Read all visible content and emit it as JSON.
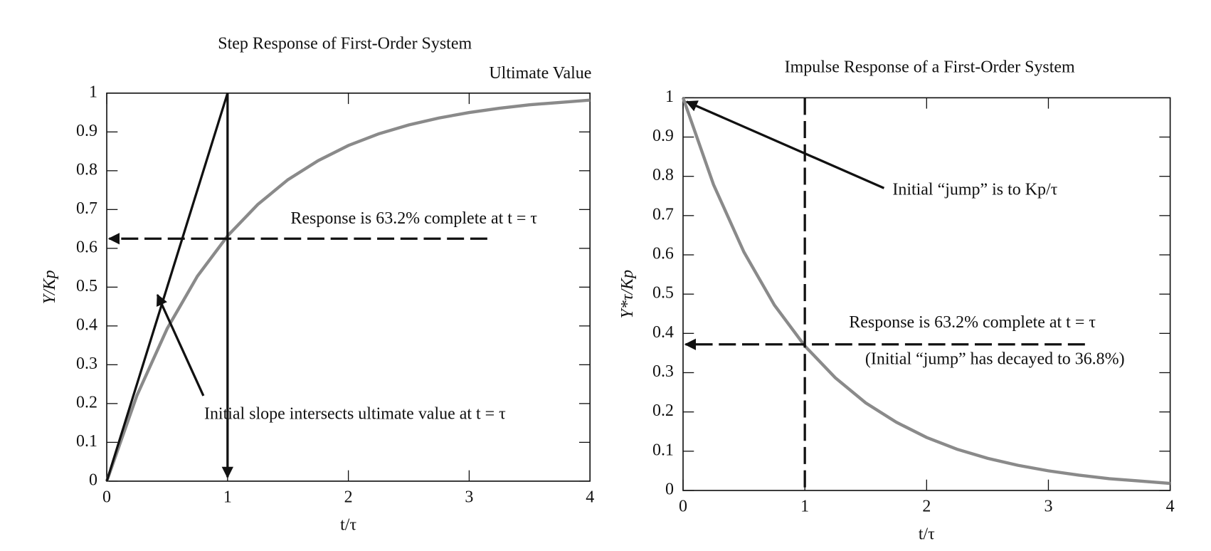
{
  "chart_data": [
    {
      "type": "line",
      "title": "Step Response of First-Order System",
      "xlabel": "t/τ",
      "ylabel": "Y/Kp",
      "x": [
        0,
        0.25,
        0.5,
        0.75,
        1,
        1.25,
        1.5,
        1.75,
        2,
        2.25,
        2.5,
        2.75,
        3,
        3.25,
        3.5,
        3.75,
        4
      ],
      "values": [
        0,
        0.221,
        0.393,
        0.528,
        0.632,
        0.713,
        0.777,
        0.826,
        0.865,
        0.895,
        0.918,
        0.936,
        0.95,
        0.961,
        0.97,
        0.976,
        0.982
      ],
      "color": "#8a8a8a",
      "xlim": [
        0,
        4
      ],
      "ylim": [
        0,
        1
      ],
      "xticks": [
        0,
        1,
        2,
        3,
        4
      ],
      "yticks": [
        0,
        0.1,
        0.2,
        0.3,
        0.4,
        0.5,
        0.6,
        0.7,
        0.8,
        0.9,
        1
      ],
      "annotations": [
        "Ultimate Value",
        "Response is 63.2% complete at t = τ",
        "Initial slope intersects ultimate value at t = τ"
      ]
    },
    {
      "type": "line",
      "title": "Impulse Response of a First-Order System",
      "xlabel": "t/τ",
      "ylabel": "Y*τ/Kp",
      "x": [
        0,
        0.25,
        0.5,
        0.75,
        1,
        1.25,
        1.5,
        1.75,
        2,
        2.25,
        2.5,
        2.75,
        3,
        3.25,
        3.5,
        3.75,
        4
      ],
      "values": [
        1,
        0.779,
        0.607,
        0.472,
        0.368,
        0.287,
        0.223,
        0.174,
        0.135,
        0.105,
        0.082,
        0.064,
        0.05,
        0.039,
        0.03,
        0.024,
        0.018
      ],
      "color": "#8a8a8a",
      "xlim": [
        0,
        4
      ],
      "ylim": [
        0,
        1
      ],
      "xticks": [
        0,
        1,
        2,
        3,
        4
      ],
      "yticks": [
        0,
        0.1,
        0.2,
        0.3,
        0.4,
        0.5,
        0.6,
        0.7,
        0.8,
        0.9,
        1
      ],
      "annotations": [
        "Initial “jump” is to Kp/τ",
        "Response is 63.2% complete at t = τ",
        "(Initial “jump” has decayed to 36.8%)"
      ]
    }
  ]
}
